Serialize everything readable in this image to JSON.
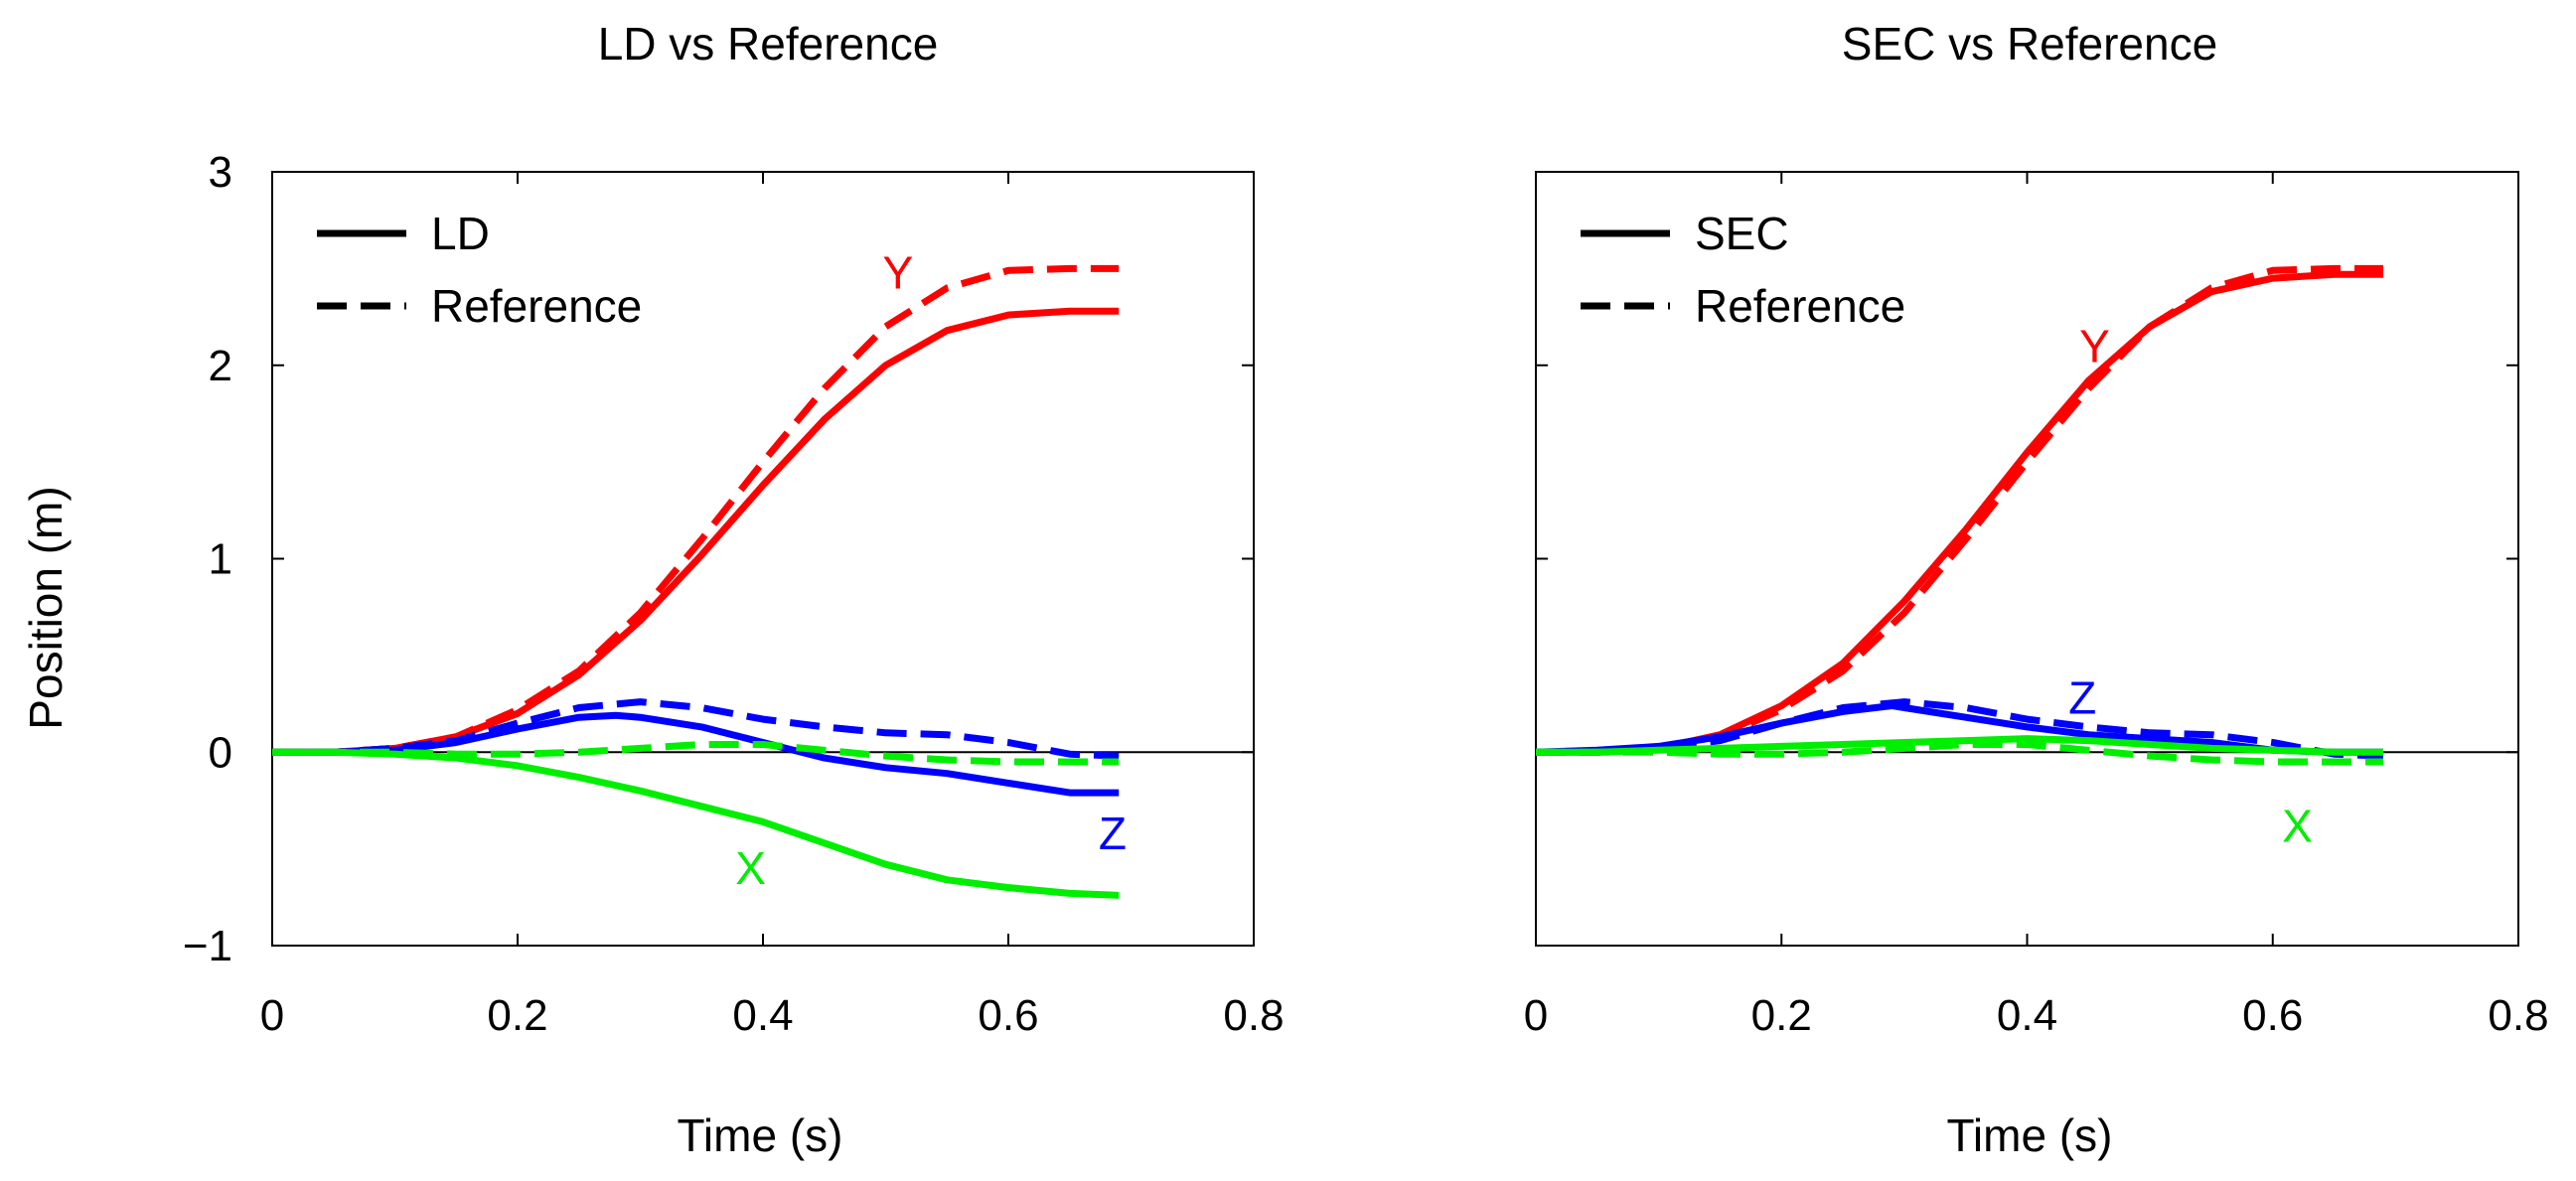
{
  "colors": {
    "Y": "#ff0000",
    "Z": "#0000ff",
    "X": "#00ee00",
    "axis": "#000000"
  },
  "chart_data": [
    {
      "type": "line",
      "title": "LD vs Reference",
      "xlabel": "Time (s)",
      "ylabel": "Position (m)",
      "xlim": [
        0,
        0.8
      ],
      "ylim": [
        -1,
        3
      ],
      "xticks": [
        0,
        0.2,
        0.4,
        0.6,
        0.8
      ],
      "xtick_labels": [
        "0",
        "0.2",
        "0.4",
        "0.6",
        "0.8"
      ],
      "yticks": [
        -1,
        0,
        1,
        2,
        3
      ],
      "ytick_labels": [
        "−1",
        "0",
        "1",
        "2",
        "3"
      ],
      "zero_line": true,
      "legend": {
        "position": "top-left",
        "entries": [
          {
            "label": "LD",
            "style": "solid"
          },
          {
            "label": "Reference",
            "style": "dashed"
          }
        ]
      },
      "annotations": [
        {
          "text": "Y",
          "x": 0.51,
          "y": 2.48,
          "color_key": "Y"
        },
        {
          "text": "Z",
          "x": 0.685,
          "y": -0.42,
          "color_key": "Z"
        },
        {
          "text": "X",
          "x": 0.39,
          "y": -0.6,
          "color_key": "X"
        }
      ],
      "series": [
        {
          "name": "Y (LD)",
          "color_key": "Y",
          "style": "solid",
          "x": [
            0,
            0.05,
            0.1,
            0.15,
            0.2,
            0.25,
            0.3,
            0.35,
            0.4,
            0.45,
            0.5,
            0.55,
            0.6,
            0.65,
            0.69
          ],
          "y": [
            0,
            0,
            0.02,
            0.08,
            0.2,
            0.4,
            0.68,
            1.02,
            1.38,
            1.72,
            2.0,
            2.18,
            2.26,
            2.28,
            2.28
          ]
        },
        {
          "name": "Y (Reference)",
          "color_key": "Y",
          "style": "dashed",
          "x": [
            0,
            0.05,
            0.1,
            0.15,
            0.2,
            0.25,
            0.3,
            0.35,
            0.4,
            0.45,
            0.5,
            0.55,
            0.6,
            0.65,
            0.69
          ],
          "y": [
            0,
            0,
            0.02,
            0.08,
            0.22,
            0.42,
            0.72,
            1.1,
            1.5,
            1.88,
            2.2,
            2.4,
            2.49,
            2.5,
            2.5
          ]
        },
        {
          "name": "Z (LD)",
          "color_key": "Z",
          "style": "solid",
          "x": [
            0,
            0.05,
            0.1,
            0.15,
            0.2,
            0.25,
            0.28,
            0.3,
            0.35,
            0.4,
            0.45,
            0.5,
            0.55,
            0.6,
            0.65,
            0.69
          ],
          "y": [
            0,
            0,
            0.01,
            0.05,
            0.12,
            0.18,
            0.19,
            0.18,
            0.13,
            0.05,
            -0.03,
            -0.08,
            -0.11,
            -0.16,
            -0.21,
            -0.21
          ]
        },
        {
          "name": "Z (Reference)",
          "color_key": "Z",
          "style": "dashed",
          "x": [
            0,
            0.05,
            0.1,
            0.15,
            0.2,
            0.25,
            0.3,
            0.35,
            0.4,
            0.45,
            0.5,
            0.55,
            0.6,
            0.65,
            0.69
          ],
          "y": [
            0,
            0,
            0.02,
            0.06,
            0.15,
            0.23,
            0.26,
            0.23,
            0.17,
            0.13,
            0.1,
            0.09,
            0.05,
            -0.01,
            -0.02
          ]
        },
        {
          "name": "X (LD)",
          "color_key": "X",
          "style": "solid",
          "x": [
            0,
            0.05,
            0.1,
            0.15,
            0.2,
            0.25,
            0.3,
            0.35,
            0.4,
            0.45,
            0.5,
            0.55,
            0.6,
            0.65,
            0.69
          ],
          "y": [
            0,
            0,
            -0.01,
            -0.03,
            -0.07,
            -0.13,
            -0.2,
            -0.28,
            -0.36,
            -0.47,
            -0.58,
            -0.66,
            -0.7,
            -0.73,
            -0.74
          ]
        },
        {
          "name": "X (Reference)",
          "color_key": "X",
          "style": "dashed",
          "x": [
            0,
            0.05,
            0.1,
            0.15,
            0.2,
            0.25,
            0.3,
            0.35,
            0.4,
            0.45,
            0.5,
            0.55,
            0.6,
            0.65,
            0.69
          ],
          "y": [
            0,
            0,
            0,
            -0.01,
            -0.01,
            0,
            0.02,
            0.04,
            0.04,
            0.01,
            -0.02,
            -0.04,
            -0.05,
            -0.05,
            -0.05
          ]
        }
      ]
    },
    {
      "type": "line",
      "title": "SEC vs Reference",
      "xlabel": "Time (s)",
      "ylabel": "",
      "xlim": [
        0,
        0.8
      ],
      "ylim": [
        -1,
        3
      ],
      "xticks": [
        0,
        0.2,
        0.4,
        0.6,
        0.8
      ],
      "xtick_labels": [
        "0",
        "0.2",
        "0.4",
        "0.6",
        "0.8"
      ],
      "yticks": [
        -1,
        0,
        1,
        2,
        3
      ],
      "ytick_labels": [],
      "zero_line": true,
      "legend": {
        "position": "top-left",
        "entries": [
          {
            "label": "SEC",
            "style": "solid"
          },
          {
            "label": "Reference",
            "style": "dashed"
          }
        ]
      },
      "annotations": [
        {
          "text": "Y",
          "x": 0.455,
          "y": 2.1,
          "color_key": "Y"
        },
        {
          "text": "Z",
          "x": 0.445,
          "y": 0.28,
          "color_key": "Z"
        },
        {
          "text": "X",
          "x": 0.62,
          "y": -0.38,
          "color_key": "X"
        }
      ],
      "series": [
        {
          "name": "Y (SEC)",
          "color_key": "Y",
          "style": "solid",
          "x": [
            0,
            0.05,
            0.1,
            0.15,
            0.2,
            0.25,
            0.3,
            0.35,
            0.4,
            0.45,
            0.5,
            0.55,
            0.6,
            0.65,
            0.69
          ],
          "y": [
            0,
            0,
            0.02,
            0.09,
            0.24,
            0.46,
            0.78,
            1.15,
            1.55,
            1.92,
            2.2,
            2.38,
            2.45,
            2.47,
            2.47
          ]
        },
        {
          "name": "Y (Reference)",
          "color_key": "Y",
          "style": "dashed",
          "x": [
            0,
            0.05,
            0.1,
            0.15,
            0.2,
            0.25,
            0.3,
            0.35,
            0.4,
            0.45,
            0.5,
            0.55,
            0.6,
            0.65,
            0.69
          ],
          "y": [
            0,
            0,
            0.02,
            0.08,
            0.22,
            0.42,
            0.72,
            1.1,
            1.5,
            1.88,
            2.2,
            2.4,
            2.49,
            2.5,
            2.5
          ]
        },
        {
          "name": "Z (SEC)",
          "color_key": "Z",
          "style": "solid",
          "x": [
            0,
            0.05,
            0.1,
            0.15,
            0.2,
            0.25,
            0.29,
            0.3,
            0.35,
            0.4,
            0.45,
            0.5,
            0.55,
            0.6,
            0.65,
            0.69
          ],
          "y": [
            0,
            0.01,
            0.03,
            0.08,
            0.15,
            0.21,
            0.24,
            0.23,
            0.18,
            0.13,
            0.09,
            0.07,
            0.05,
            0.01,
            0,
            0
          ]
        },
        {
          "name": "Z (Reference)",
          "color_key": "Z",
          "style": "dashed",
          "x": [
            0,
            0.05,
            0.1,
            0.15,
            0.2,
            0.25,
            0.3,
            0.35,
            0.4,
            0.45,
            0.5,
            0.55,
            0.6,
            0.65,
            0.69
          ],
          "y": [
            0,
            0,
            0.02,
            0.06,
            0.15,
            0.23,
            0.26,
            0.23,
            0.17,
            0.13,
            0.1,
            0.09,
            0.05,
            -0.01,
            -0.02
          ]
        },
        {
          "name": "X (SEC)",
          "color_key": "X",
          "style": "solid",
          "x": [
            0,
            0.05,
            0.1,
            0.15,
            0.2,
            0.25,
            0.3,
            0.35,
            0.4,
            0.45,
            0.5,
            0.55,
            0.6,
            0.65,
            0.69
          ],
          "y": [
            0,
            0,
            0.01,
            0.02,
            0.03,
            0.04,
            0.05,
            0.06,
            0.07,
            0.06,
            0.04,
            0.02,
            0.01,
            0,
            0
          ]
        },
        {
          "name": "X (Reference)",
          "color_key": "X",
          "style": "dashed",
          "x": [
            0,
            0.05,
            0.1,
            0.15,
            0.2,
            0.25,
            0.3,
            0.35,
            0.4,
            0.45,
            0.5,
            0.55,
            0.6,
            0.65,
            0.69
          ],
          "y": [
            0,
            0,
            0,
            -0.01,
            -0.01,
            0,
            0.02,
            0.04,
            0.04,
            0.01,
            -0.02,
            -0.04,
            -0.05,
            -0.05,
            -0.05
          ]
        }
      ]
    }
  ]
}
